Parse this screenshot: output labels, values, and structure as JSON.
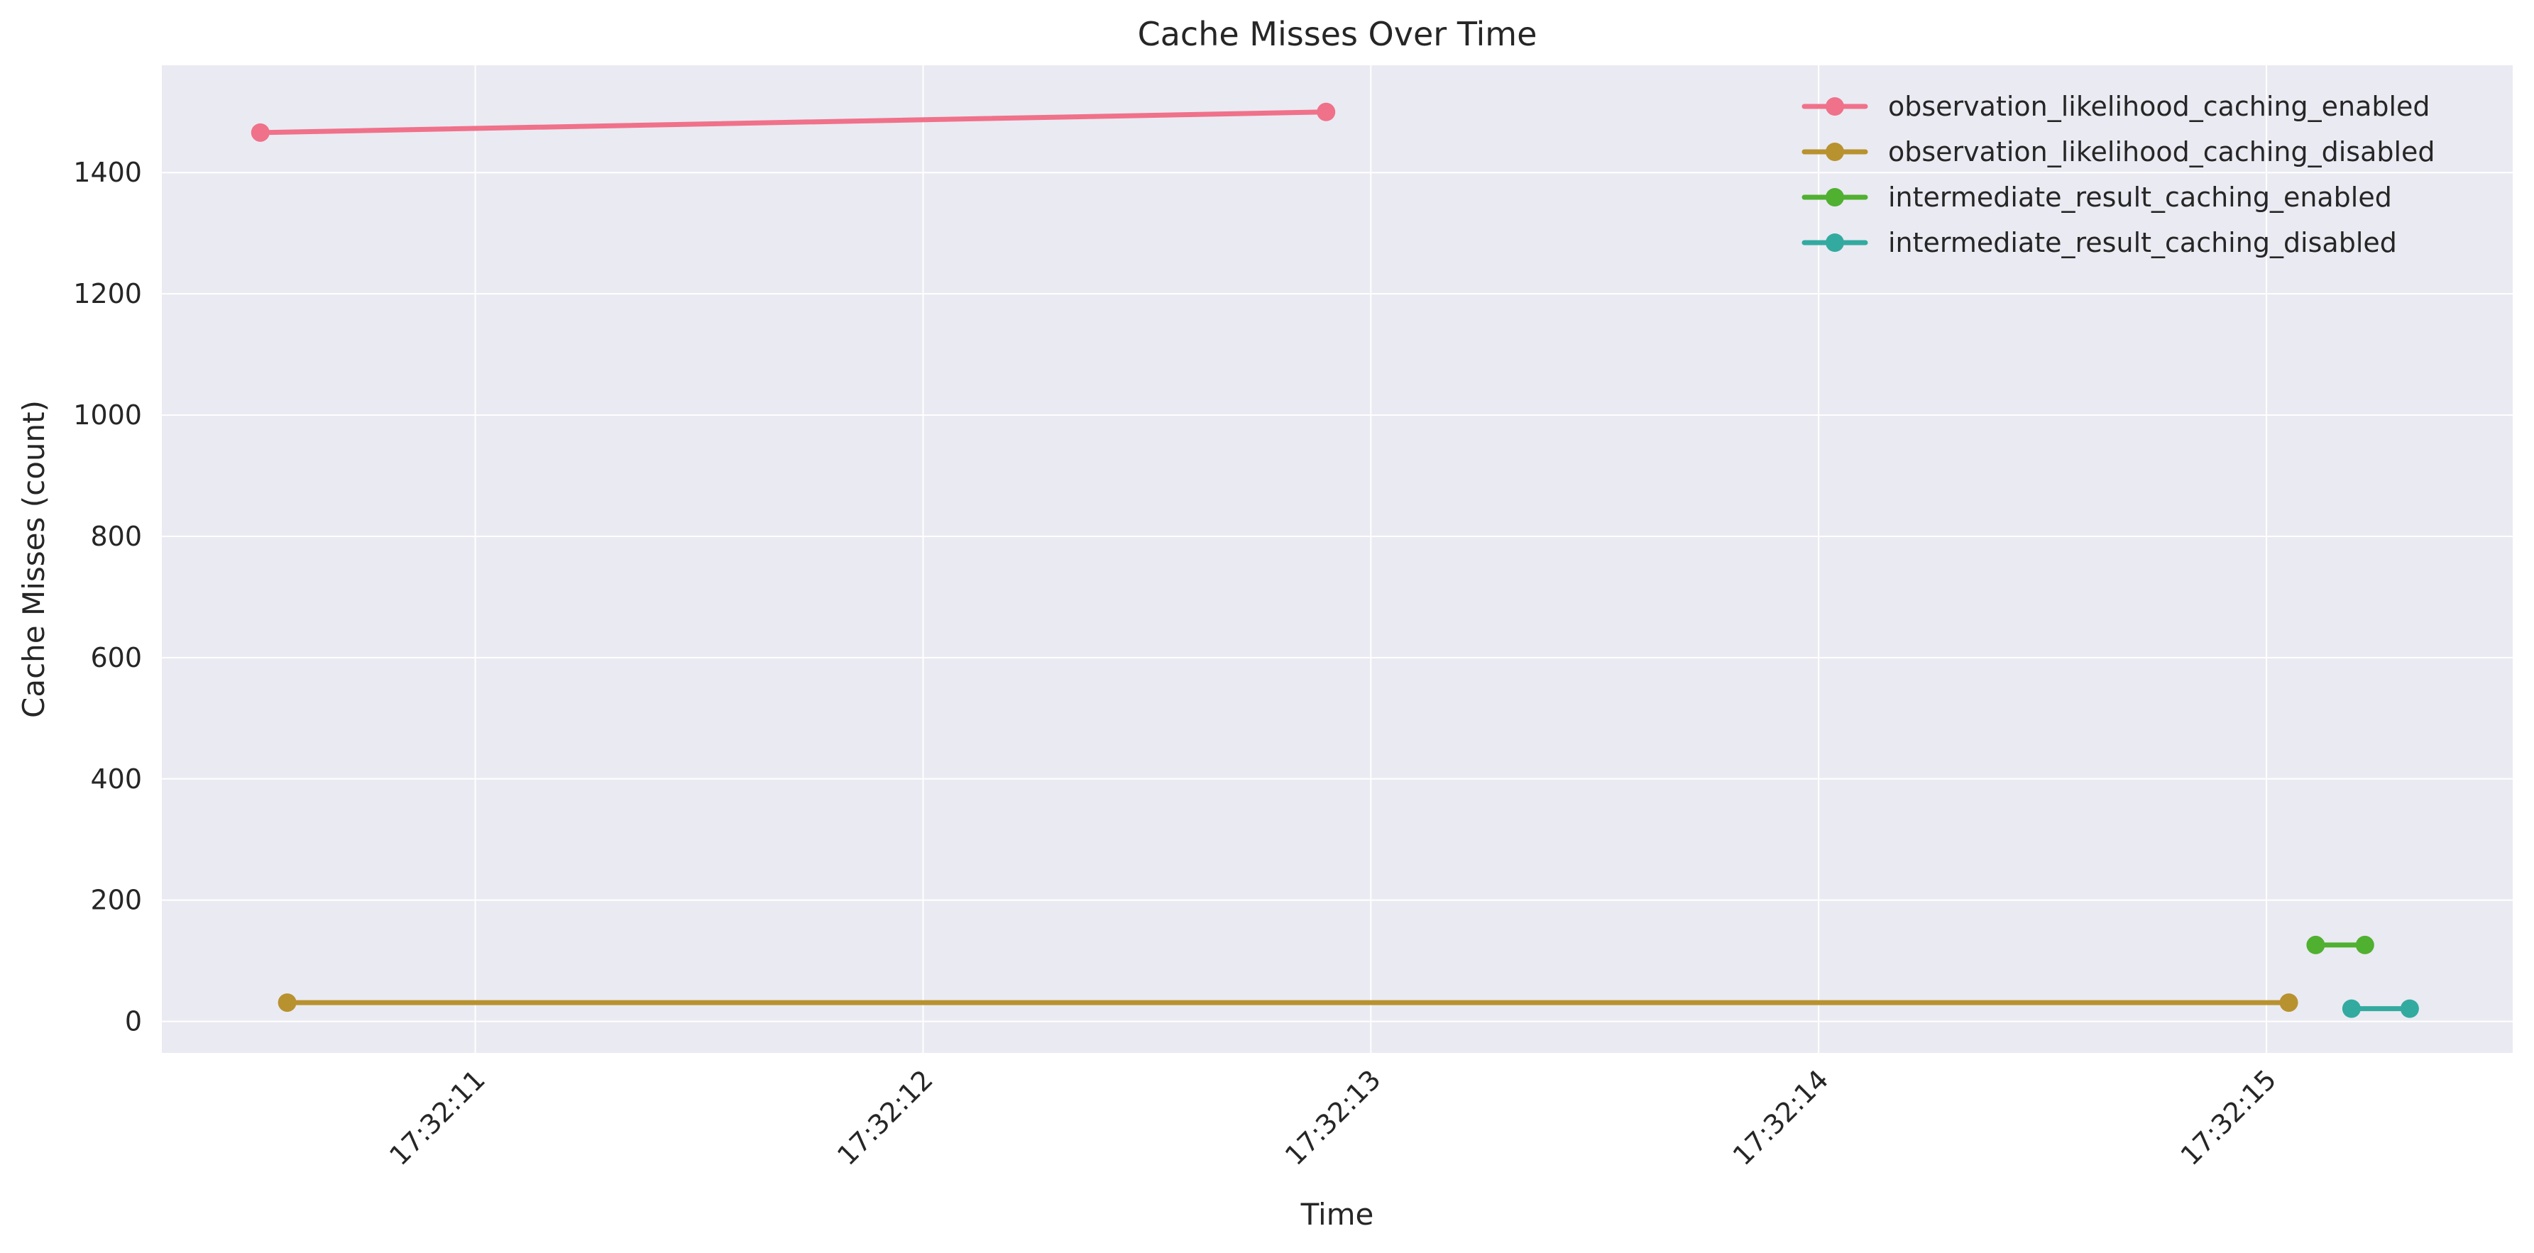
{
  "chart_data": {
    "type": "line",
    "title": "Cache Misses Over Time",
    "xlabel": "Time",
    "ylabel": "Cache Misses (count)",
    "x_ticks": [
      "17:32:11",
      "17:32:12",
      "17:32:13",
      "17:32:14",
      "17:32:15"
    ],
    "x_tick_values": [
      11.0,
      12.0,
      13.0,
      14.0,
      15.0
    ],
    "xlim": [
      10.3,
      15.55
    ],
    "y_ticks": [
      "0",
      "200",
      "400",
      "600",
      "800",
      "1000",
      "1200",
      "1400"
    ],
    "y_tick_values": [
      0,
      200,
      400,
      600,
      800,
      1000,
      1200,
      1400
    ],
    "ylim": [
      -52,
      1577
    ],
    "grid": true,
    "legend_position": "top-right",
    "series": [
      {
        "name": "observation_likelihood_caching_enabled",
        "color": "#f0718a",
        "x": [
          10.52,
          12.9
        ],
        "y": [
          1466,
          1500
        ]
      },
      {
        "name": "observation_likelihood_caching_disabled",
        "color": "#b8922e",
        "x": [
          10.58,
          15.05
        ],
        "y": [
          31,
          31
        ]
      },
      {
        "name": "intermediate_result_caching_enabled",
        "color": "#50b030",
        "x": [
          15.11,
          15.22
        ],
        "y": [
          126,
          126
        ]
      },
      {
        "name": "intermediate_result_caching_disabled",
        "color": "#33aaa0",
        "x": [
          15.19,
          15.32
        ],
        "y": [
          21,
          21
        ]
      }
    ]
  }
}
